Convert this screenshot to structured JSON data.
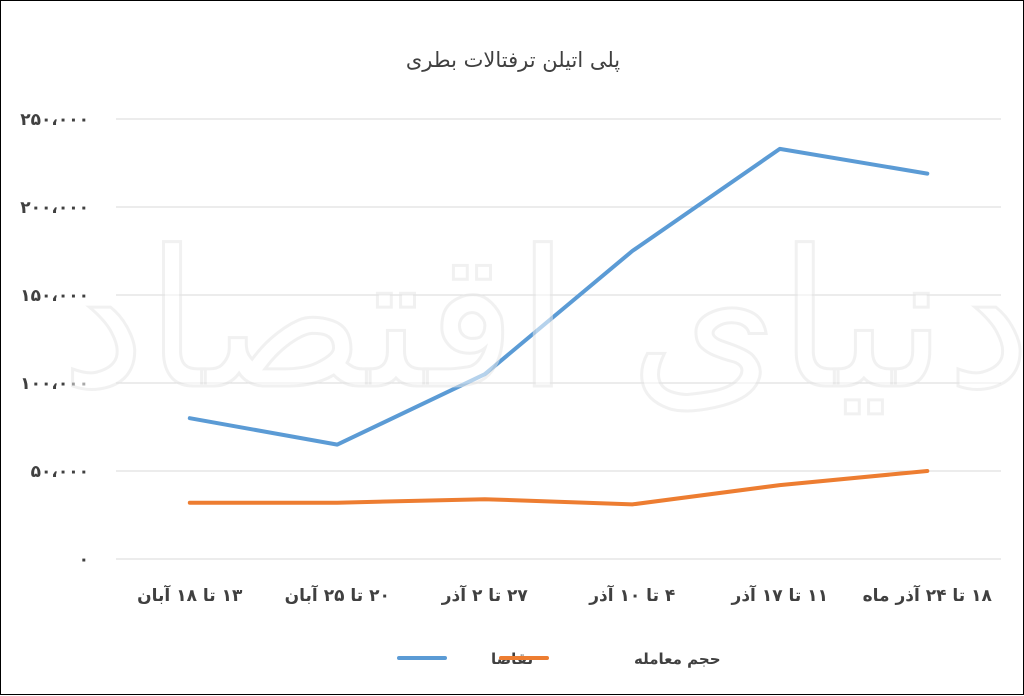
{
  "chart_data": {
    "type": "line",
    "title": "پلی اتیلن ترفتالات بطری",
    "categories": [
      "۱۳ تا ۱۸ آبان",
      "۲۰ تا ۲۵ آبان",
      "۲۷ تا ۲ آذر",
      "۴ تا ۱۰ آذر",
      "۱۱ تا ۱۷ آذر",
      "۱۸ تا ۲۴ آذر ماه"
    ],
    "y_ticks": [
      "۰",
      "۵۰،۰۰۰",
      "۱۰۰،۰۰۰",
      "۱۵۰،۰۰۰",
      "۲۰۰،۰۰۰",
      "۲۵۰،۰۰۰"
    ],
    "y_tick_values": [
      0,
      50000,
      100000,
      150000,
      200000,
      250000
    ],
    "ylim": [
      0,
      250000
    ],
    "grid": true,
    "legend_position": "bottom",
    "series": [
      {
        "name": "تقاضا",
        "color": "#5b9bd5",
        "values": [
          80000,
          65000,
          105000,
          175000,
          233000,
          219000
        ]
      },
      {
        "name": "حجم معامله",
        "color": "#ed7d31",
        "values": [
          32000,
          32000,
          34000,
          31000,
          42000,
          50000
        ]
      }
    ]
  },
  "watermark_text": "دنیای اقتصاد"
}
